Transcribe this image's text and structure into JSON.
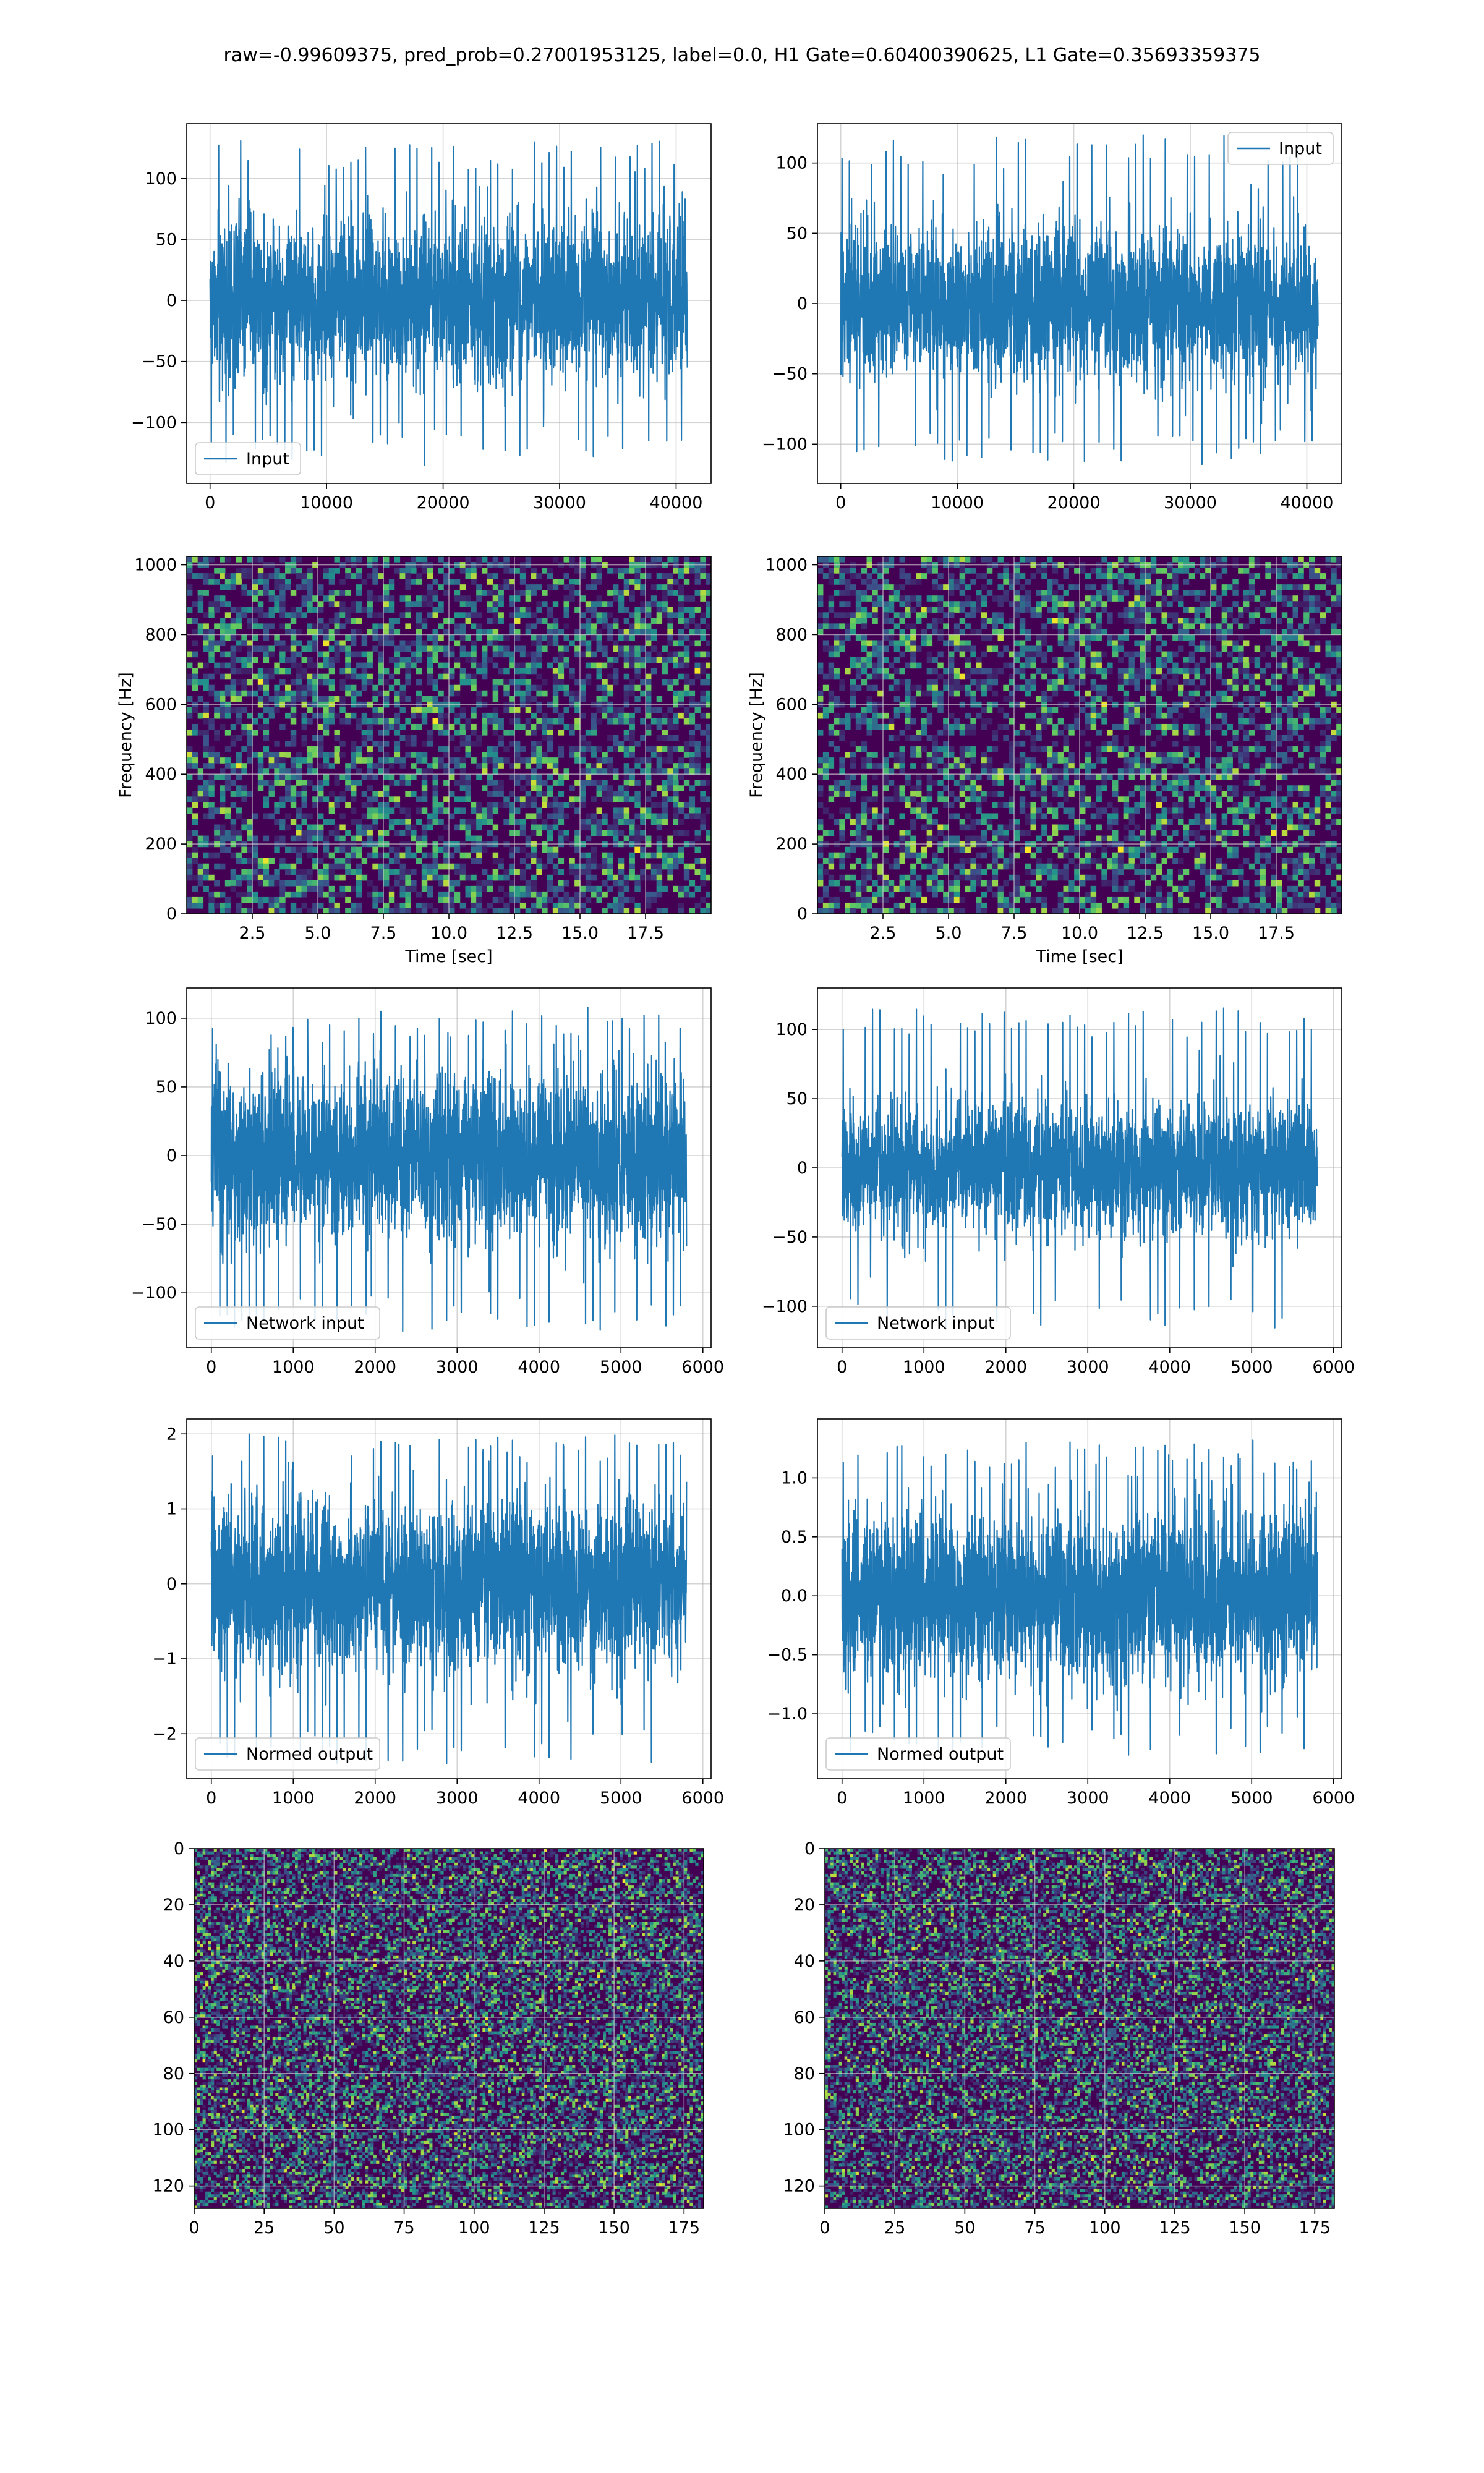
{
  "figure": {
    "suptitle": "raw=-0.99609375, pred_prob=0.27001953125, label=0.0, H1 Gate=0.60400390625, L1 Gate=0.35693359375",
    "colors": {
      "line": "#1f77b4",
      "grid": "#b0b0b0",
      "frame": "#000000",
      "legend_edge": "#cccccc"
    }
  },
  "chart_data": [
    {
      "id": "input-h1",
      "type": "line",
      "row": 0,
      "col": 0,
      "xlim": [
        -2000,
        43000
      ],
      "ylim": [
        -150,
        145
      ],
      "xticks": [
        0,
        10000,
        20000,
        30000,
        40000
      ],
      "yticks": [
        -100,
        -50,
        0,
        50,
        100
      ],
      "series": [
        {
          "name": "Input",
          "x_range": [
            0,
            40960
          ],
          "amplitude_std": 32,
          "peak_range": [
            -135,
            133
          ]
        }
      ],
      "legend": "lower-left",
      "grid": true,
      "xlabel": "",
      "ylabel": ""
    },
    {
      "id": "input-l1",
      "type": "line",
      "row": 0,
      "col": 1,
      "xlim": [
        -2000,
        43000
      ],
      "ylim": [
        -128,
        128
      ],
      "xticks": [
        0,
        10000,
        20000,
        30000,
        40000
      ],
      "yticks": [
        -100,
        -50,
        0,
        50,
        100
      ],
      "series": [
        {
          "name": "Input",
          "x_range": [
            0,
            40960
          ],
          "amplitude_std": 26,
          "peak_range": [
            -115,
            120
          ]
        }
      ],
      "legend": "upper-right",
      "grid": true,
      "xlabel": "",
      "ylabel": ""
    },
    {
      "id": "spectrogram-h1",
      "type": "heatmap",
      "row": 1,
      "col": 0,
      "xlim": [
        0,
        20
      ],
      "ylim": [
        0,
        1024
      ],
      "xticks": [
        2.5,
        5.0,
        7.5,
        10.0,
        12.5,
        15.0,
        17.5
      ],
      "yticks": [
        0,
        200,
        400,
        600,
        800,
        1000
      ],
      "xlabel": "Time [sec]",
      "ylabel": "Frequency [Hz]",
      "colormap": "viridis",
      "grid": true
    },
    {
      "id": "spectrogram-l1",
      "type": "heatmap",
      "row": 1,
      "col": 1,
      "xlim": [
        0,
        20
      ],
      "ylim": [
        0,
        1024
      ],
      "xticks": [
        2.5,
        5.0,
        7.5,
        10.0,
        12.5,
        15.0,
        17.5
      ],
      "yticks": [
        0,
        200,
        400,
        600,
        800,
        1000
      ],
      "xlabel": "Time [sec]",
      "ylabel": "Frequency [Hz]",
      "colormap": "viridis",
      "grid": true
    },
    {
      "id": "network-input-h1",
      "type": "line",
      "row": 2,
      "col": 0,
      "xlim": [
        -300,
        6100
      ],
      "ylim": [
        -140,
        122
      ],
      "xticks": [
        0,
        1000,
        2000,
        3000,
        4000,
        5000,
        6000
      ],
      "yticks": [
        -100,
        -50,
        0,
        50,
        100
      ],
      "series": [
        {
          "name": "Network input",
          "x_range": [
            0,
            5800
          ],
          "amplitude_std": 30,
          "peak_range": [
            -128,
            108
          ]
        }
      ],
      "legend": "lower-left",
      "grid": true,
      "xlabel": "",
      "ylabel": ""
    },
    {
      "id": "network-input-l1",
      "type": "line",
      "row": 2,
      "col": 1,
      "xlim": [
        -300,
        6100
      ],
      "ylim": [
        -130,
        130
      ],
      "xticks": [
        0,
        1000,
        2000,
        3000,
        4000,
        5000,
        6000
      ],
      "yticks": [
        -100,
        -50,
        0,
        50,
        100
      ],
      "series": [
        {
          "name": "Network input",
          "x_range": [
            0,
            5800
          ],
          "amplitude_std": 23,
          "peak_range": [
            -118,
            117
          ]
        }
      ],
      "legend": "lower-left",
      "grid": true,
      "xlabel": "",
      "ylabel": ""
    },
    {
      "id": "normed-output-h1",
      "type": "line",
      "row": 3,
      "col": 0,
      "xlim": [
        -300,
        6100
      ],
      "ylim": [
        -2.6,
        2.2
      ],
      "xticks": [
        0,
        1000,
        2000,
        3000,
        4000,
        5000,
        6000
      ],
      "yticks": [
        -2,
        -1,
        0,
        1,
        2
      ],
      "series": [
        {
          "name": "Normed output",
          "x_range": [
            0,
            5800
          ],
          "amplitude_std": 0.55,
          "peak_range": [
            -2.4,
            2.0
          ]
        }
      ],
      "legend": "lower-left",
      "grid": true,
      "xlabel": "",
      "ylabel": ""
    },
    {
      "id": "normed-output-l1",
      "type": "line",
      "row": 3,
      "col": 1,
      "xlim": [
        -300,
        6100
      ],
      "ylim": [
        -1.55,
        1.5
      ],
      "xticks": [
        0,
        1000,
        2000,
        3000,
        4000,
        5000,
        6000
      ],
      "yticks": [
        -1.0,
        -0.5,
        0.0,
        0.5,
        1.0
      ],
      "series": [
        {
          "name": "Normed output",
          "x_range": [
            0,
            5800
          ],
          "amplitude_std": 0.36,
          "peak_range": [
            -1.35,
            1.33
          ]
        }
      ],
      "legend": "lower-left",
      "grid": true,
      "xlabel": "",
      "ylabel": ""
    },
    {
      "id": "feature-map-h1",
      "type": "heatmap",
      "row": 4,
      "col": 0,
      "xlim": [
        0,
        182
      ],
      "ylim": [
        128,
        0
      ],
      "xticks": [
        0,
        25,
        50,
        75,
        100,
        125,
        150,
        175
      ],
      "yticks": [
        0,
        20,
        40,
        60,
        80,
        100,
        120
      ],
      "xlabel": "",
      "ylabel": "",
      "colormap": "viridis",
      "grid": true
    },
    {
      "id": "feature-map-l1",
      "type": "heatmap",
      "row": 4,
      "col": 1,
      "xlim": [
        0,
        182
      ],
      "ylim": [
        128,
        0
      ],
      "xticks": [
        0,
        25,
        50,
        75,
        100,
        125,
        150,
        175
      ],
      "yticks": [
        0,
        20,
        40,
        60,
        80,
        100,
        120
      ],
      "xlabel": "",
      "ylabel": "",
      "colormap": "viridis",
      "grid": true
    }
  ]
}
